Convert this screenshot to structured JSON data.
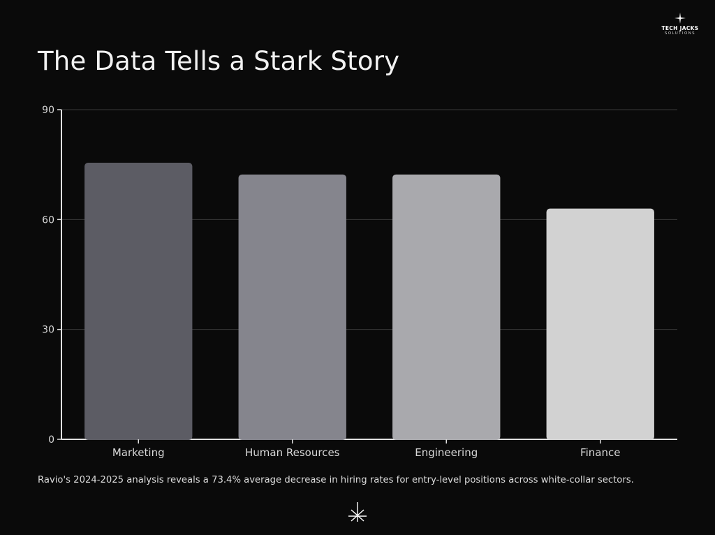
{
  "brand": {
    "name": "TECH JACKS",
    "tagline": "SOLUTIONS"
  },
  "title": "The Data Tells a Stark Story",
  "caption": "Ravio's 2024-2025 analysis reveals a 73.4% average decrease in hiring rates for entry-level positions across white-collar sectors.",
  "colors": {
    "background": "#0a0a0a",
    "axis": "#e0e0e0",
    "grid": "#3a3a3a",
    "bars": [
      "#5c5c64",
      "#85858d",
      "#a9a9ad",
      "#d2d2d2"
    ]
  },
  "chart_data": {
    "type": "bar",
    "title": "The Data Tells a Stark Story",
    "categories": [
      "Marketing",
      "Human Resources",
      "Engineering",
      "Finance"
    ],
    "values": [
      75.5,
      72.3,
      72.3,
      63.0
    ],
    "ylim": [
      0,
      90
    ],
    "yticks": [
      0,
      30,
      60,
      90
    ],
    "xlabel": "",
    "ylabel": "",
    "grid": true,
    "legend": "none"
  }
}
